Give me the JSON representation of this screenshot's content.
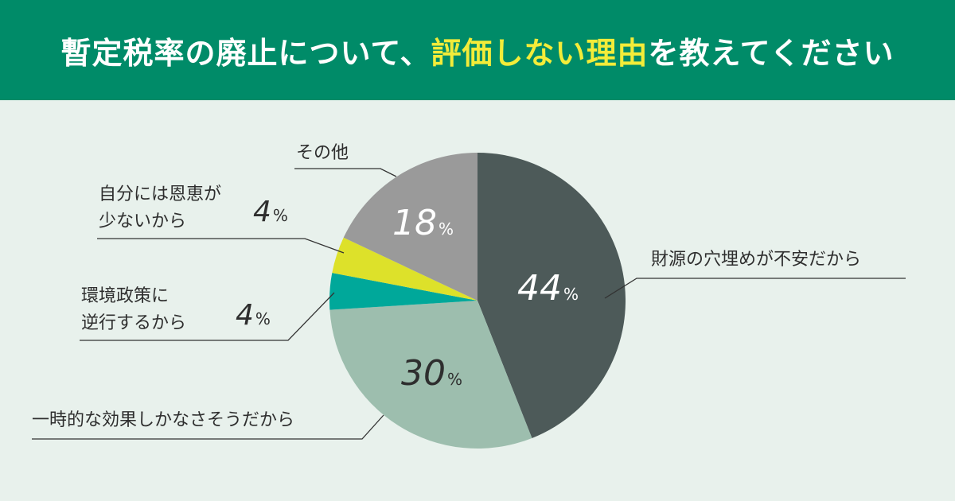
{
  "title": {
    "before": "暫定税率の廃止について、",
    "highlight": "評価しない理由",
    "after": "を教えてください"
  },
  "colors": {
    "header_bg": "#008b68",
    "background": "#e8f1ec",
    "highlight": "#f3ec39"
  },
  "chart_data": {
    "type": "pie",
    "unit": "%",
    "slices": [
      {
        "label": "財源の穴埋めが不安だから",
        "value": 44,
        "color": "#4d5a59",
        "text_color": "#ffffff"
      },
      {
        "label": "一時的な効果しかなさそうだから",
        "value": 30,
        "color": "#9dbeae",
        "text_color": "#2e2e2e"
      },
      {
        "label": "環境政策に逆行するから",
        "value": 4,
        "color": "#00a89a",
        "text_color": "#2e2e2e"
      },
      {
        "label": "自分には恩恵が少ないから",
        "value": 4,
        "color": "#dde12a",
        "text_color": "#2e2e2e"
      },
      {
        "label": "その他",
        "value": 18,
        "color": "#9a9a9a",
        "text_color": "#ffffff"
      }
    ]
  },
  "labels": {
    "zaigen": "財源の穴埋めが不安だから",
    "ichiji": "一時的な効果しかなさそうだから",
    "kankyo_1": "環境政策に",
    "kankyo_2": "逆行するから",
    "jibun_1": "自分には恩恵が",
    "jibun_2": "少ないから",
    "sonota": "その他"
  },
  "values": {
    "zaigen": "44",
    "ichiji": "30",
    "kankyo": "4",
    "jibun": "4",
    "sonota": "18",
    "unit": "%"
  }
}
